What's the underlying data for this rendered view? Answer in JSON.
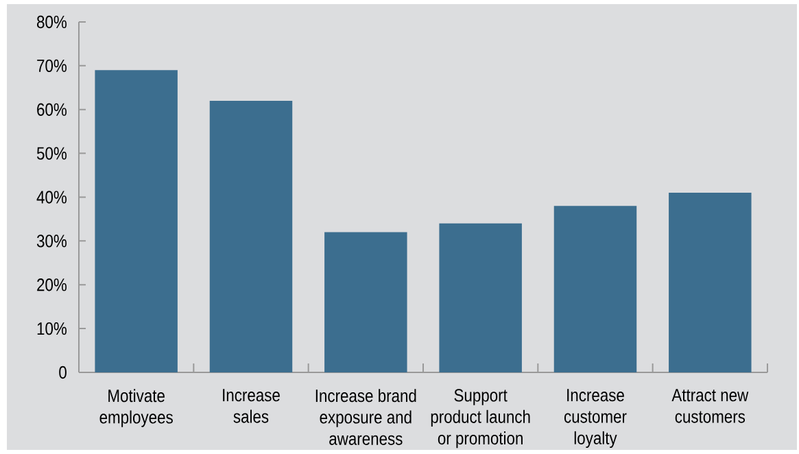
{
  "chart_data": {
    "type": "bar",
    "categories": [
      "Motivate\nemployees",
      "Increase\nsales",
      "Increase brand\nexposure and\nawareness",
      "Support\nproduct launch\nor promotion",
      "Increase\ncustomer\nloyalty",
      "Attract new\ncustomers"
    ],
    "values": [
      69,
      62,
      32,
      34,
      38,
      41
    ],
    "color": "#3c6e8f",
    "ylim": [
      0,
      80
    ],
    "yticks": [
      0,
      {
        "value": 10,
        "label": "10%"
      },
      {
        "value": 20,
        "label": "20%"
      },
      {
        "value": 30,
        "label": "30%"
      },
      {
        "value": 40,
        "label": "40%"
      },
      {
        "value": 50,
        "label": "50%"
      },
      {
        "value": 60,
        "label": "60%"
      },
      {
        "value": 70,
        "label": "70%"
      },
      {
        "value": 80,
        "label": "80%"
      }
    ]
  }
}
